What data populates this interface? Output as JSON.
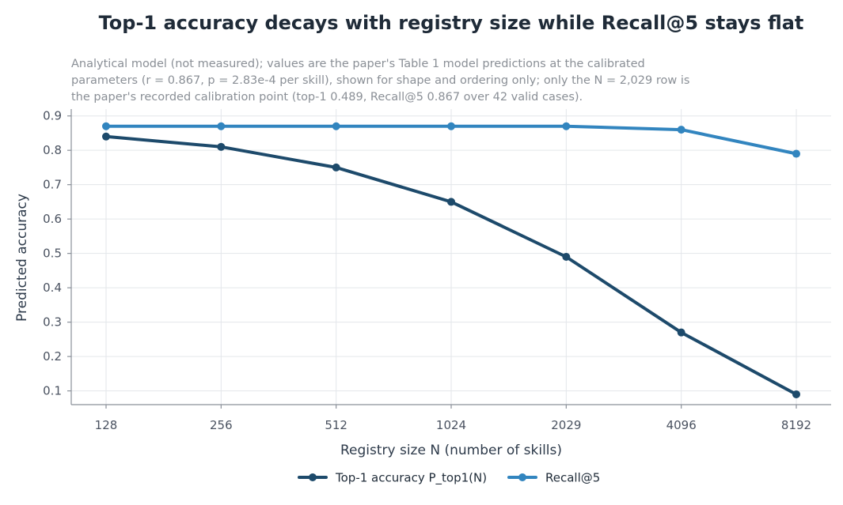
{
  "chart_data": {
    "type": "line",
    "title": "Top-1 accuracy decays with registry size while Recall@5 stays flat",
    "subtitle": [
      "Analytical model (not measured); values are the paper's Table 1 model predictions at the calibrated",
      "parameters (r = 0.867, p = 2.83e-4 per skill), shown for shape and ordering only; only the N = 2,029 row is",
      "the paper's recorded calibration point (top-1 0.489, Recall@5 0.867 over 42 valid cases)."
    ],
    "xlabel": "Registry size N (number of skills)",
    "ylabel": "Predicted accuracy",
    "categories": [
      "128",
      "256",
      "512",
      "1024",
      "2029",
      "4096",
      "8192"
    ],
    "y_ticks": [
      "0.1",
      "0.2",
      "0.3",
      "0.4",
      "0.5",
      "0.6",
      "0.7",
      "0.8",
      "0.9"
    ],
    "ylim": [
      0.06,
      0.92
    ],
    "grid": true,
    "legend_position": "bottom-center",
    "series": [
      {
        "name": "Top-1 accuracy P_top1(N)",
        "color": "#1d4a6b",
        "values": [
          0.84,
          0.81,
          0.75,
          0.65,
          0.49,
          0.27,
          0.09
        ]
      },
      {
        "name": "Recall@5",
        "color": "#3285bf",
        "values": [
          0.87,
          0.87,
          0.87,
          0.87,
          0.87,
          0.86,
          0.79
        ]
      }
    ]
  }
}
